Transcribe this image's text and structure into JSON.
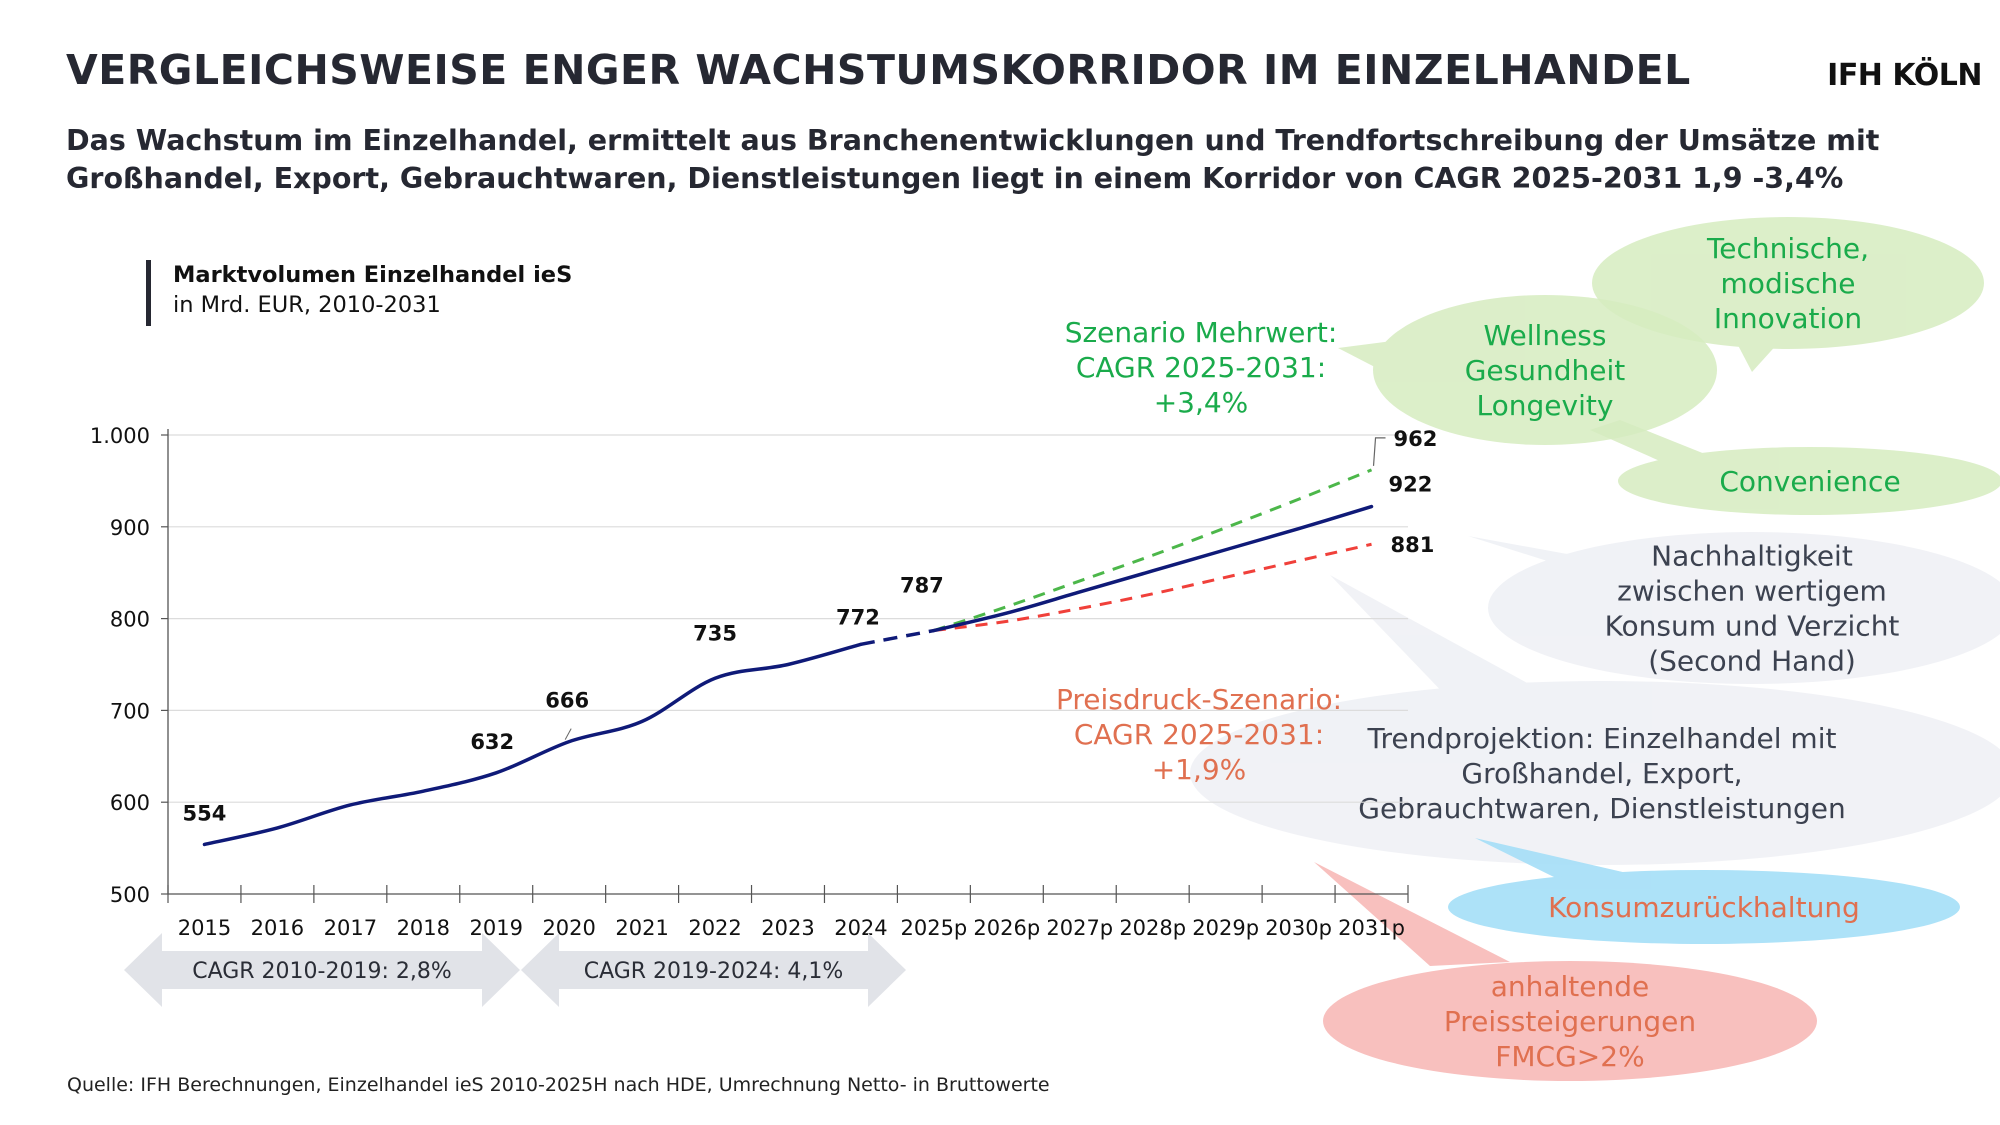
{
  "header": {
    "title": "VERGLEICHSWEISE ENGER WACHSTUMSKORRIDOR IM EINZELHANDEL",
    "logo": "IFH KÖLN",
    "subtitle": "Das Wachstum im Einzelhandel, ermittelt aus Branchenentwicklungen und Trendfortschreibung der Umsätze mit Großhandel, Export, Gebrauchtwaren, Dienstleistungen liegt in einem Korridor von CAGR 2025-2031 1,9 -3,4%"
  },
  "chart_heading": {
    "title": "Marktvolumen Einzelhandel ieS",
    "subtitle": "in Mrd. EUR, 2010-2031"
  },
  "colors": {
    "main_line": "#0f1a78",
    "scenario_mehrwert": "#4cb74a",
    "scenario_preisdruck": "#f0403a",
    "green_text": "#1aab4b",
    "orange_text": "#e07050",
    "gray_text": "#3c4250",
    "bubble_green": "#d6ecc0",
    "bubble_gray": "#eef0f5",
    "bubble_blue": "#a9e0f8",
    "bubble_pink": "#f8bdbb",
    "arrow_gray": "#e1e3e8"
  },
  "chart_data": {
    "type": "line",
    "title": "Marktvolumen Einzelhandel ieS",
    "subtitle": "in Mrd. EUR, 2010-2031",
    "xlabel": "",
    "ylabel": "",
    "ylim": [
      500,
      1000
    ],
    "yticks": [
      500,
      600,
      700,
      800,
      900,
      1000
    ],
    "ytick_labels": [
      "500",
      "600",
      "700",
      "800",
      "900",
      "1.000"
    ],
    "grid": true,
    "categories": [
      "2015",
      "2016",
      "2017",
      "2018",
      "2019",
      "2020",
      "2021",
      "2022",
      "2023",
      "2024",
      "2025p",
      "2026p",
      "2027p",
      "2028p",
      "2029p",
      "2030p",
      "2031p"
    ],
    "series": [
      {
        "name": "Trendprojektion",
        "style": "solid",
        "values": [
          554,
          572,
          597,
          612,
          632,
          666,
          688,
          735,
          750,
          772,
          787,
          806,
          829,
          852,
          875,
          898,
          922
        ],
        "dashed_between": [
          "2024",
          "2025p"
        ]
      },
      {
        "name": "Szenario Mehrwert",
        "style": "dashed",
        "values": [
          null,
          null,
          null,
          null,
          null,
          null,
          null,
          null,
          null,
          null,
          787,
          813,
          841,
          869,
          899,
          930,
          962
        ]
      },
      {
        "name": "Preisdruck-Szenario",
        "style": "dashed",
        "values": [
          null,
          null,
          null,
          null,
          null,
          null,
          null,
          null,
          null,
          null,
          787,
          797,
          811,
          827,
          845,
          863,
          881
        ]
      }
    ],
    "data_labels": [
      {
        "category": "2015",
        "value": "554"
      },
      {
        "category": "2019",
        "value": "632"
      },
      {
        "category": "2020",
        "value": "666"
      },
      {
        "category": "2022",
        "value": "735"
      },
      {
        "category": "2024",
        "value": "772"
      },
      {
        "category": "2025p",
        "value": "787"
      },
      {
        "category": "2031p",
        "value": "962",
        "series": "Szenario Mehrwert"
      },
      {
        "category": "2031p",
        "value": "922",
        "series": "Trendprojektion"
      },
      {
        "category": "2031p",
        "value": "881",
        "series": "Preisdruck-Szenario"
      }
    ],
    "annotations": [
      {
        "id": "mehrwert",
        "lines": [
          "Szenario Mehrwert:",
          "CAGR 2025-2031:",
          "+3,4%"
        ]
      },
      {
        "id": "preisdruck",
        "lines": [
          "Preisdruck-Szenario:",
          "CAGR 2025-2031:",
          "+1,9%"
        ]
      }
    ],
    "cagr_arrows": [
      {
        "label": "CAGR 2010-2019: 2,8%"
      },
      {
        "label": "CAGR 2019-2024: 4,1%"
      }
    ]
  },
  "bubbles": [
    {
      "id": "technische",
      "lines": [
        "Technische,",
        "modische",
        "Innovation"
      ],
      "theme": "green"
    },
    {
      "id": "wellness",
      "lines": [
        "Wellness",
        "Gesundheit",
        "Longevity"
      ],
      "theme": "green"
    },
    {
      "id": "convenience",
      "lines": [
        "Convenience"
      ],
      "theme": "green"
    },
    {
      "id": "nachhaltigkeit",
      "lines": [
        "Nachhaltigkeit",
        "zwischen wertigem",
        "Konsum und Verzicht",
        "(Second Hand)"
      ],
      "theme": "gray"
    },
    {
      "id": "trendprojektion",
      "lines": [
        "Trendprojektion: Einzelhandel mit",
        "Großhandel, Export,",
        "Gebrauchtwaren, Dienstleistungen"
      ],
      "theme": "gray"
    },
    {
      "id": "konsum",
      "lines": [
        "Konsumzurückhaltung"
      ],
      "theme": "blue"
    },
    {
      "id": "preissteigerung",
      "lines": [
        "anhaltende",
        "Preissteigerungen",
        "FMCG>2%"
      ],
      "theme": "pink"
    }
  ],
  "footer": {
    "source": "Quelle: IFH Berechnungen, Einzelhandel ieS 2010-2025H nach HDE, Umrechnung Netto- in Bruttowerte"
  }
}
